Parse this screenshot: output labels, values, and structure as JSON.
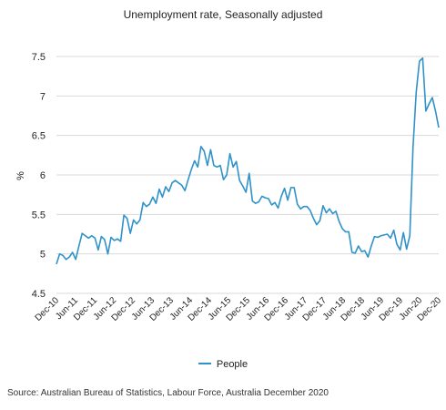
{
  "colors": {
    "series": "#2f92c9",
    "grid": "#d9d9d9",
    "text": "#222222"
  },
  "chart_data": {
    "type": "line",
    "title": "Unemployment rate, Seasonally adjusted",
    "ylabel": "%",
    "xlabel": "",
    "ylim": [
      4.5,
      7.5
    ],
    "yticks": [
      "4.5",
      "5",
      "5.5",
      "6",
      "6.5",
      "7",
      "7.5"
    ],
    "grid": "horizontal",
    "legend": "bottom-center",
    "xticks": [
      "Dec-10",
      "Jun-11",
      "Dec-11",
      "Jun-12",
      "Dec-12",
      "Jun-13",
      "Dec-13",
      "Jun-14",
      "Dec-14",
      "Jun-15",
      "Dec-15",
      "Jun-16",
      "Dec-16",
      "Jun-17",
      "Dec-17",
      "Jun-18",
      "Dec-18",
      "Jun-19",
      "Dec-19",
      "Jun-20",
      "Dec-20"
    ],
    "series": [
      {
        "name": "People",
        "values": [
          4.87,
          5.0,
          4.98,
          4.93,
          4.96,
          5.02,
          4.93,
          5.1,
          5.26,
          5.23,
          5.2,
          5.23,
          5.2,
          5.05,
          5.22,
          5.18,
          5.0,
          5.21,
          5.17,
          5.19,
          5.16,
          5.49,
          5.45,
          5.26,
          5.43,
          5.38,
          5.43,
          5.65,
          5.6,
          5.63,
          5.72,
          5.64,
          5.82,
          5.72,
          5.85,
          5.79,
          5.9,
          5.93,
          5.9,
          5.87,
          5.8,
          5.94,
          6.07,
          6.18,
          6.1,
          6.36,
          6.3,
          6.12,
          6.32,
          6.12,
          6.1,
          6.12,
          5.94,
          6.0,
          6.27,
          6.1,
          6.17,
          5.93,
          5.86,
          5.78,
          6.02,
          5.67,
          5.64,
          5.66,
          5.73,
          5.71,
          5.7,
          5.62,
          5.65,
          5.58,
          5.73,
          5.83,
          5.68,
          5.84,
          5.84,
          5.63,
          5.57,
          5.6,
          5.6,
          5.55,
          5.45,
          5.37,
          5.42,
          5.61,
          5.52,
          5.57,
          5.51,
          5.54,
          5.41,
          5.32,
          5.28,
          5.28,
          5.02,
          5.01,
          5.1,
          5.03,
          5.04,
          4.96,
          5.1,
          5.22,
          5.21,
          5.23,
          5.24,
          5.25,
          5.2,
          5.3,
          5.12,
          5.05,
          5.27,
          5.06,
          5.23,
          6.35,
          7.05,
          7.44,
          7.48,
          6.81,
          6.9,
          6.98,
          6.81,
          6.6
        ]
      }
    ]
  },
  "legend": {
    "label": "People"
  },
  "source": {
    "text": "Source: Australian Bureau of Statistics, Labour Force, Australia December 2020"
  }
}
